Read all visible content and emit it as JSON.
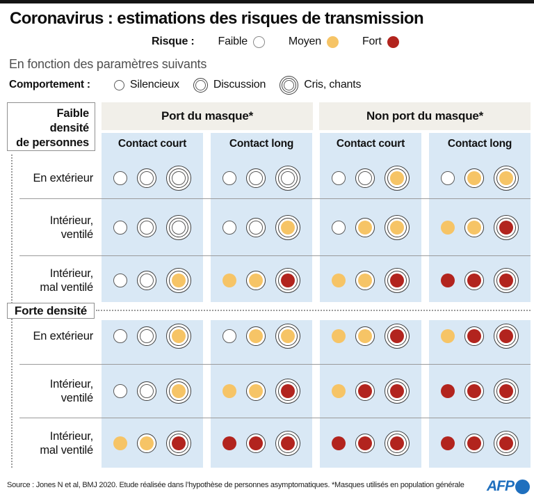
{
  "title": "Coronavirus : estimations des risques de transmission",
  "subtitle": "En fonction des paramètres suivants",
  "risk_legend": {
    "label": "Risque :",
    "items": [
      {
        "label": "Faible",
        "level": "faible"
      },
      {
        "label": "Moyen",
        "level": "moyen"
      },
      {
        "label": "Fort",
        "level": "fort"
      }
    ]
  },
  "behavior_legend": {
    "label": "Comportement :",
    "items": [
      {
        "label": "Silencieux",
        "rings": 1
      },
      {
        "label": "Discussion",
        "rings": 2
      },
      {
        "label": "Cris, chants",
        "rings": 3
      }
    ]
  },
  "table": {
    "column_groups": [
      {
        "label": "Port du masque*"
      },
      {
        "label": "Non port du masque*"
      }
    ],
    "sub_columns": [
      "Contact court",
      "Contact long",
      "Contact court",
      "Contact long"
    ],
    "density_labels": {
      "faible": "Faible\ndensité\nde personnes",
      "forte": "Forte densité"
    },
    "rows": [
      {
        "label": "En extérieur",
        "density": "faible",
        "cells": [
          [
            "faible",
            "faible",
            "faible"
          ],
          [
            "faible",
            "faible",
            "faible"
          ],
          [
            "faible",
            "faible",
            "moyen"
          ],
          [
            "faible",
            "moyen",
            "moyen"
          ]
        ]
      },
      {
        "label": "Intérieur,\nventilé",
        "density": "faible",
        "cells": [
          [
            "faible",
            "faible",
            "faible"
          ],
          [
            "faible",
            "faible",
            "moyen"
          ],
          [
            "faible",
            "moyen",
            "moyen"
          ],
          [
            "moyen",
            "moyen",
            "fort"
          ]
        ]
      },
      {
        "label": "Intérieur,\nmal ventilé",
        "density": "faible",
        "cells": [
          [
            "faible",
            "faible",
            "moyen"
          ],
          [
            "moyen",
            "moyen",
            "fort"
          ],
          [
            "moyen",
            "moyen",
            "fort"
          ],
          [
            "fort",
            "fort",
            "fort"
          ]
        ]
      },
      {
        "label": "En extérieur",
        "density": "forte",
        "cells": [
          [
            "faible",
            "faible",
            "moyen"
          ],
          [
            "faible",
            "moyen",
            "moyen"
          ],
          [
            "moyen",
            "moyen",
            "fort"
          ],
          [
            "moyen",
            "fort",
            "fort"
          ]
        ]
      },
      {
        "label": "Intérieur,\nventilé",
        "density": "forte",
        "cells": [
          [
            "faible",
            "faible",
            "moyen"
          ],
          [
            "moyen",
            "moyen",
            "fort"
          ],
          [
            "moyen",
            "fort",
            "fort"
          ],
          [
            "fort",
            "fort",
            "fort"
          ]
        ]
      },
      {
        "label": "Intérieur,\nmal ventilé",
        "density": "forte",
        "cells": [
          [
            "moyen",
            "moyen",
            "fort"
          ],
          [
            "fort",
            "fort",
            "fort"
          ],
          [
            "fort",
            "fort",
            "fort"
          ],
          [
            "fort",
            "fort",
            "fort"
          ]
        ]
      }
    ]
  },
  "footer": {
    "source": "Source : Jones N et al, BMJ 2020. Etude réalisée dans l’hypothèse de personnes asymptomatiques. *Masques utilisés en population générale",
    "brand": "AFP"
  },
  "colors": {
    "faible": "#ffffff",
    "moyen": "#f6c466",
    "fort": "#b2241e",
    "cell_blue": "#d9e8f5",
    "header_gray": "#f1efe9",
    "afp_blue": "#1f6fbe",
    "ring_stroke": "#3f3f3f"
  },
  "chart_data": {
    "type": "heatmap",
    "title": "Coronavirus : estimations des risques de transmission",
    "risk_scale": [
      "faible",
      "moyen",
      "fort"
    ],
    "behaviors": [
      "Silencieux",
      "Discussion",
      "Cris, chants"
    ],
    "columns": [
      "Port du masque* / Contact court",
      "Port du masque* / Contact long",
      "Non port du masque* / Contact court",
      "Non port du masque* / Contact long"
    ],
    "rows": [
      "Faible densité / En extérieur",
      "Faible densité / Intérieur ventilé",
      "Faible densité / Intérieur mal ventilé",
      "Forte densité / En extérieur",
      "Forte densité / Intérieur ventilé",
      "Forte densité / Intérieur mal ventilé"
    ],
    "values_by_row": [
      [
        [
          "faible",
          "faible",
          "faible"
        ],
        [
          "faible",
          "faible",
          "faible"
        ],
        [
          "faible",
          "faible",
          "moyen"
        ],
        [
          "faible",
          "moyen",
          "moyen"
        ]
      ],
      [
        [
          "faible",
          "faible",
          "faible"
        ],
        [
          "faible",
          "faible",
          "moyen"
        ],
        [
          "faible",
          "moyen",
          "moyen"
        ],
        [
          "moyen",
          "moyen",
          "fort"
        ]
      ],
      [
        [
          "faible",
          "faible",
          "moyen"
        ],
        [
          "moyen",
          "moyen",
          "fort"
        ],
        [
          "moyen",
          "moyen",
          "fort"
        ],
        [
          "fort",
          "fort",
          "fort"
        ]
      ],
      [
        [
          "faible",
          "faible",
          "moyen"
        ],
        [
          "faible",
          "moyen",
          "moyen"
        ],
        [
          "moyen",
          "moyen",
          "fort"
        ],
        [
          "moyen",
          "fort",
          "fort"
        ]
      ],
      [
        [
          "faible",
          "faible",
          "moyen"
        ],
        [
          "moyen",
          "moyen",
          "fort"
        ],
        [
          "moyen",
          "fort",
          "fort"
        ],
        [
          "fort",
          "fort",
          "fort"
        ]
      ],
      [
        [
          "moyen",
          "moyen",
          "fort"
        ],
        [
          "fort",
          "fort",
          "fort"
        ],
        [
          "fort",
          "fort",
          "fort"
        ],
        [
          "fort",
          "fort",
          "fort"
        ]
      ]
    ]
  }
}
